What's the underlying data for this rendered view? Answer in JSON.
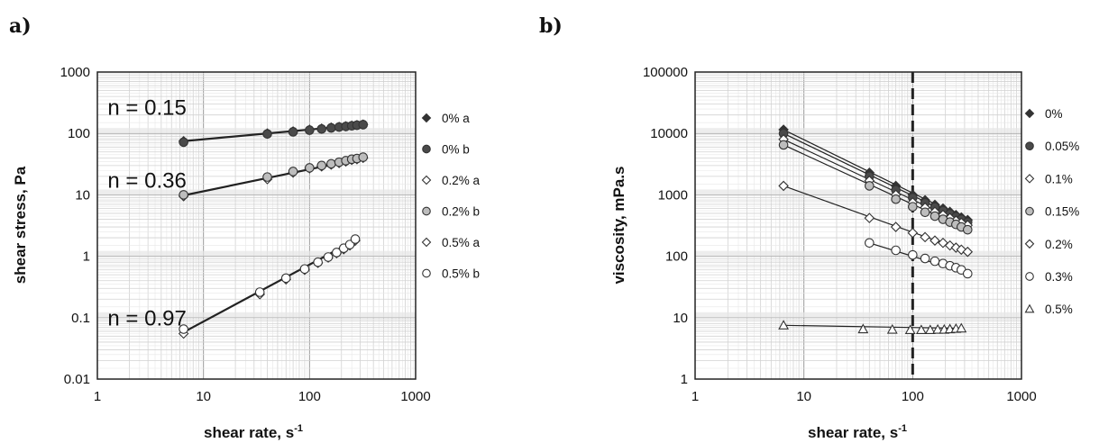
{
  "chart_data": [
    {
      "panel": "a)",
      "type": "scatter",
      "xlabel": "shear rate, s",
      "xlabel_sup": "-1",
      "ylabel": "shear stress, Pa",
      "xscale": "log",
      "yscale": "log",
      "xlim": [
        1,
        1000
      ],
      "ylim": [
        0.01,
        1000
      ],
      "xticks": [
        1,
        10,
        100,
        1000
      ],
      "xtick_labels": [
        "1",
        "10",
        "100",
        "1000"
      ],
      "yticks": [
        0.01,
        0.1,
        1,
        10,
        100,
        1000
      ],
      "ytick_labels": [
        "0.01",
        "0.1",
        "1",
        "10",
        "100",
        "1000"
      ],
      "grid": true,
      "legend_position": "right",
      "annotations": [
        {
          "text": "n = 0.15",
          "x": 1.25,
          "y": 200
        },
        {
          "text": "n = 0.36",
          "x": 1.25,
          "y": 13
        },
        {
          "text": "n = 0.97",
          "x": 1.25,
          "y": 0.075
        }
      ],
      "series": [
        {
          "name": "0% a",
          "marker": "diamond-filled",
          "color": "#333333",
          "x": [
            6.5,
            40,
            70,
            100,
            130,
            160,
            190,
            220,
            250,
            280,
            320
          ],
          "y": [
            75,
            100,
            108,
            115,
            120,
            125,
            128,
            131,
            134,
            137,
            140
          ]
        },
        {
          "name": "0% b",
          "marker": "circle-filled",
          "color": "#555555",
          "x": [
            6.5,
            40,
            70,
            100,
            130,
            160,
            190,
            220,
            250,
            280,
            320
          ],
          "y": [
            72,
            98,
            106,
            113,
            118,
            123,
            127,
            130,
            133,
            136,
            139
          ]
        },
        {
          "name": "0.2% a",
          "marker": "diamond-open",
          "color": "#333333",
          "x": [
            6.5,
            40,
            70,
            100,
            130,
            160,
            190,
            220,
            250,
            280,
            320
          ],
          "y": [
            9.5,
            18,
            23,
            27,
            29,
            31,
            33,
            35,
            37,
            38,
            40
          ]
        },
        {
          "name": "0.2% b",
          "marker": "circle-lightgray",
          "color": "#bbbbbb",
          "x": [
            6.5,
            40,
            70,
            100,
            130,
            160,
            190,
            220,
            250,
            280,
            320
          ],
          "y": [
            10,
            19.5,
            24,
            27.5,
            30,
            32,
            34,
            36,
            38,
            39,
            41
          ]
        },
        {
          "name": "0.5% a",
          "marker": "diamond-open",
          "color": "#333333",
          "x": [
            6.5,
            34,
            60,
            90,
            120,
            150,
            180,
            210,
            240,
            270
          ],
          "y": [
            0.055,
            0.24,
            0.42,
            0.6,
            0.78,
            0.95,
            1.12,
            1.3,
            1.5,
            1.8
          ]
        },
        {
          "name": "0.5% b",
          "marker": "circle-open",
          "color": "#333333",
          "x": [
            6.5,
            34,
            60,
            90,
            120,
            150,
            180,
            210,
            240,
            270
          ],
          "y": [
            0.065,
            0.26,
            0.44,
            0.62,
            0.8,
            0.97,
            1.15,
            1.35,
            1.55,
            1.9
          ]
        }
      ],
      "fit_lines": [
        {
          "x": [
            6.5,
            330
          ],
          "y": [
            75,
            140
          ]
        },
        {
          "x": [
            6.5,
            330
          ],
          "y": [
            9.8,
            40
          ]
        },
        {
          "x": [
            6.5,
            280
          ],
          "y": [
            0.058,
            1.9
          ]
        }
      ]
    },
    {
      "panel": "b)",
      "type": "scatter",
      "xlabel": "shear rate, s",
      "xlabel_sup": "-1",
      "ylabel": "viscosity, mPa.s",
      "xscale": "log",
      "yscale": "log",
      "xlim": [
        1,
        1000
      ],
      "ylim": [
        1,
        100000
      ],
      "xticks": [
        1,
        10,
        100,
        1000
      ],
      "xtick_labels": [
        "1",
        "10",
        "100",
        "1000"
      ],
      "yticks": [
        1,
        10,
        100,
        1000,
        10000,
        100000
      ],
      "ytick_labels": [
        "1",
        "10",
        "100",
        "1000",
        "10000",
        "100000"
      ],
      "grid": true,
      "legend_position": "right",
      "reference_line": {
        "x": 100,
        "style": "dashed"
      },
      "series": [
        {
          "name": "0%",
          "marker": "diamond-filled",
          "color": "#333333",
          "x": [
            6.5,
            40,
            70,
            100,
            130,
            160,
            190,
            220,
            250,
            280,
            320
          ],
          "y": [
            11500,
            2300,
            1400,
            1000,
            820,
            690,
            600,
            530,
            470,
            430,
            390
          ]
        },
        {
          "name": "0.05%",
          "marker": "circle-filled",
          "color": "#555555",
          "x": [
            6.5,
            40,
            70,
            100,
            130,
            160,
            190,
            220,
            250,
            280,
            320
          ],
          "y": [
            10000,
            2000,
            1200,
            900,
            740,
            630,
            550,
            490,
            440,
            400,
            360
          ]
        },
        {
          "name": "0.1%",
          "marker": "diamond-open",
          "color": "#333333",
          "x": [
            6.5,
            40,
            70,
            100,
            130,
            160,
            190,
            220,
            250,
            280,
            320
          ],
          "y": [
            8000,
            1700,
            1000,
            750,
            620,
            530,
            470,
            420,
            380,
            350,
            320
          ]
        },
        {
          "name": "0.15%",
          "marker": "circle-lightgray",
          "color": "#bbbbbb",
          "x": [
            6.5,
            40,
            70,
            100,
            130,
            160,
            190,
            220,
            250,
            280,
            320
          ],
          "y": [
            6500,
            1400,
            850,
            640,
            520,
            450,
            400,
            360,
            330,
            300,
            270
          ]
        },
        {
          "name": "0.2%",
          "marker": "diamond-open",
          "color": "#333333",
          "x": [
            6.5,
            40,
            70,
            100,
            130,
            160,
            190,
            220,
            250,
            280,
            320
          ],
          "y": [
            1400,
            420,
            300,
            240,
            205,
            180,
            165,
            150,
            138,
            128,
            118
          ]
        },
        {
          "name": "0.3%",
          "marker": "circle-open",
          "color": "#333333",
          "x": [
            40,
            70,
            100,
            130,
            160,
            190,
            220,
            250,
            280,
            320
          ],
          "y": [
            165,
            125,
            105,
            92,
            83,
            76,
            70,
            65,
            60,
            52
          ]
        },
        {
          "name": "0.5%",
          "marker": "triangle-open",
          "color": "#333333",
          "x": [
            6.5,
            35,
            65,
            95,
            120,
            145,
            170,
            195,
            220,
            250,
            280
          ],
          "y": [
            7.5,
            6.5,
            6.4,
            6.3,
            6.3,
            6.3,
            6.4,
            6.4,
            6.5,
            6.6,
            6.7
          ]
        }
      ],
      "fit_lines": [
        {
          "x": [
            6.5,
            330
          ],
          "y": [
            11500,
            380
          ]
        },
        {
          "x": [
            6.5,
            330
          ],
          "y": [
            10000,
            350
          ]
        },
        {
          "x": [
            6.5,
            330
          ],
          "y": [
            8000,
            310
          ]
        },
        {
          "x": [
            6.5,
            330
          ],
          "y": [
            6500,
            265
          ]
        },
        {
          "x": [
            6.5,
            330
          ],
          "y": [
            1400,
            115
          ]
        },
        {
          "x": [
            40,
            330
          ],
          "y": [
            165,
            52
          ]
        },
        {
          "x": [
            6.5,
            280
          ],
          "y": [
            7.5,
            6.7
          ]
        }
      ]
    }
  ]
}
